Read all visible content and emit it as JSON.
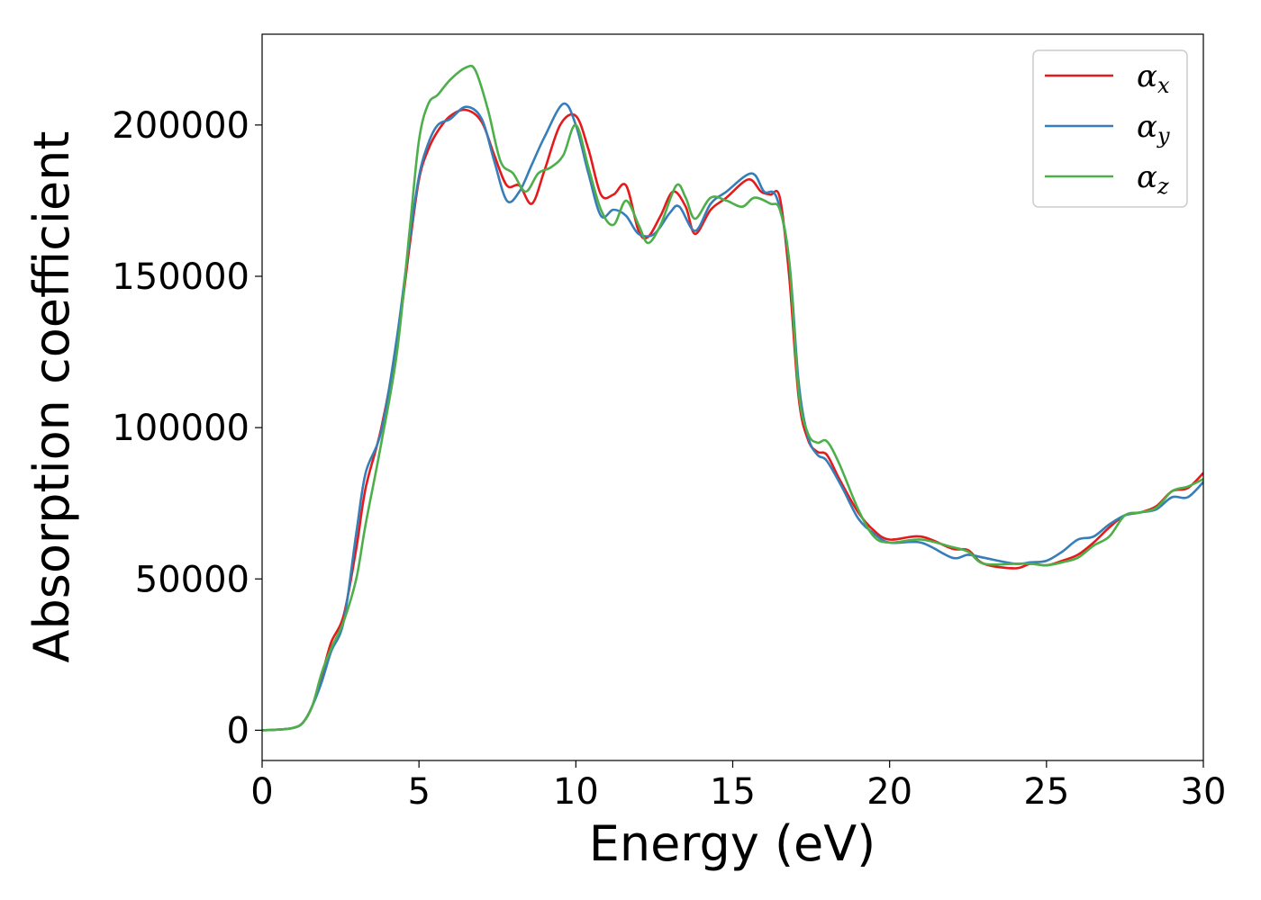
{
  "chart_data": {
    "type": "line",
    "xlabel": "Energy (eV)",
    "ylabel": "Absorption coefficient",
    "xlim": [
      0,
      30
    ],
    "ylim": [
      -10000,
      230000
    ],
    "xticks": [
      0,
      5,
      10,
      15,
      20,
      25,
      30
    ],
    "yticks": [
      0,
      50000,
      100000,
      150000,
      200000
    ],
    "grid": false,
    "legend_position": "top-right",
    "series": [
      {
        "name": "αx",
        "legend_base": "α",
        "legend_sub": "x",
        "color": "#e41a1c",
        "points": [
          [
            0,
            0
          ],
          [
            0.5,
            200
          ],
          [
            1,
            800
          ],
          [
            1.3,
            2500
          ],
          [
            1.6,
            8000
          ],
          [
            1.9,
            18000
          ],
          [
            2.2,
            29000
          ],
          [
            2.6,
            38000
          ],
          [
            3,
            60000
          ],
          [
            3.3,
            80000
          ],
          [
            3.8,
            100000
          ],
          [
            4.3,
            128000
          ],
          [
            4.7,
            160000
          ],
          [
            5,
            182000
          ],
          [
            5.3,
            192000
          ],
          [
            5.6,
            198000
          ],
          [
            6,
            203000
          ],
          [
            6.5,
            205000
          ],
          [
            7,
            201000
          ],
          [
            7.4,
            190000
          ],
          [
            7.8,
            180000
          ],
          [
            8.2,
            180000
          ],
          [
            8.6,
            174000
          ],
          [
            9,
            185000
          ],
          [
            9.5,
            200000
          ],
          [
            10,
            203000
          ],
          [
            10.4,
            192000
          ],
          [
            10.8,
            177000
          ],
          [
            11.2,
            177000
          ],
          [
            11.6,
            180000
          ],
          [
            12,
            165000
          ],
          [
            12.3,
            163000
          ],
          [
            12.7,
            170000
          ],
          [
            13.1,
            178000
          ],
          [
            13.5,
            173000
          ],
          [
            13.8,
            164000
          ],
          [
            14.3,
            172000
          ],
          [
            14.8,
            176000
          ],
          [
            15.5,
            182000
          ],
          [
            15.9,
            178000
          ],
          [
            16.2,
            177000
          ],
          [
            16.5,
            176000
          ],
          [
            16.8,
            150000
          ],
          [
            17.1,
            110000
          ],
          [
            17.4,
            96000
          ],
          [
            17.7,
            92000
          ],
          [
            18,
            91000
          ],
          [
            18.4,
            83000
          ],
          [
            19,
            72000
          ],
          [
            19.5,
            66000
          ],
          [
            20,
            63000
          ],
          [
            21,
            64000
          ],
          [
            22,
            60000
          ],
          [
            22.5,
            59500
          ],
          [
            23,
            55000
          ],
          [
            24,
            53500
          ],
          [
            24.5,
            55000
          ],
          [
            25,
            54500
          ],
          [
            25.5,
            56000
          ],
          [
            26,
            58000
          ],
          [
            26.5,
            62000
          ],
          [
            27,
            67000
          ],
          [
            27.5,
            71000
          ],
          [
            28,
            72000
          ],
          [
            28.5,
            74000
          ],
          [
            29,
            79000
          ],
          [
            29.5,
            80000
          ],
          [
            30,
            85000
          ]
        ]
      },
      {
        "name": "αy",
        "legend_base": "α",
        "legend_sub": "y",
        "color": "#377eb8",
        "points": [
          [
            0,
            0
          ],
          [
            0.5,
            200
          ],
          [
            1,
            800
          ],
          [
            1.3,
            2500
          ],
          [
            1.6,
            8000
          ],
          [
            1.9,
            16000
          ],
          [
            2.2,
            26000
          ],
          [
            2.6,
            36000
          ],
          [
            3,
            65000
          ],
          [
            3.3,
            85000
          ],
          [
            3.8,
            99000
          ],
          [
            4.3,
            130000
          ],
          [
            4.7,
            162000
          ],
          [
            5,
            183000
          ],
          [
            5.3,
            194000
          ],
          [
            5.6,
            200000
          ],
          [
            6,
            202000
          ],
          [
            6.5,
            206000
          ],
          [
            7,
            202000
          ],
          [
            7.4,
            188000
          ],
          [
            7.8,
            175000
          ],
          [
            8.2,
            178000
          ],
          [
            8.6,
            187000
          ],
          [
            9,
            196000
          ],
          [
            9.6,
            207000
          ],
          [
            10,
            200000
          ],
          [
            10.4,
            184000
          ],
          [
            10.8,
            170000
          ],
          [
            11.2,
            172000
          ],
          [
            11.6,
            170000
          ],
          [
            12,
            164000
          ],
          [
            12.5,
            164000
          ],
          [
            13,
            171000
          ],
          [
            13.3,
            173000
          ],
          [
            13.8,
            165000
          ],
          [
            14.3,
            174000
          ],
          [
            14.8,
            178000
          ],
          [
            15.6,
            184000
          ],
          [
            16,
            178000
          ],
          [
            16.4,
            176000
          ],
          [
            16.8,
            155000
          ],
          [
            17.1,
            115000
          ],
          [
            17.4,
            97000
          ],
          [
            17.7,
            91000
          ],
          [
            18,
            89000
          ],
          [
            18.5,
            80000
          ],
          [
            19,
            70000
          ],
          [
            19.5,
            65000
          ],
          [
            20,
            62000
          ],
          [
            21,
            62000
          ],
          [
            22,
            57000
          ],
          [
            22.5,
            58000
          ],
          [
            23,
            57000
          ],
          [
            24,
            55000
          ],
          [
            24.5,
            55500
          ],
          [
            25,
            56000
          ],
          [
            25.5,
            59000
          ],
          [
            26,
            63000
          ],
          [
            26.5,
            64000
          ],
          [
            27,
            68000
          ],
          [
            27.5,
            71000
          ],
          [
            28,
            72000
          ],
          [
            28.5,
            73000
          ],
          [
            29,
            77000
          ],
          [
            29.5,
            77000
          ],
          [
            30,
            82000
          ]
        ]
      },
      {
        "name": "αz",
        "legend_base": "α",
        "legend_sub": "z",
        "color": "#4daf4a",
        "points": [
          [
            0,
            0
          ],
          [
            0.5,
            200
          ],
          [
            1,
            800
          ],
          [
            1.3,
            2500
          ],
          [
            1.6,
            8000
          ],
          [
            1.9,
            19000
          ],
          [
            2.2,
            27000
          ],
          [
            2.6,
            36000
          ],
          [
            3,
            50000
          ],
          [
            3.3,
            68000
          ],
          [
            3.8,
            95000
          ],
          [
            4.3,
            125000
          ],
          [
            4.7,
            165000
          ],
          [
            5,
            195000
          ],
          [
            5.3,
            207000
          ],
          [
            5.6,
            210000
          ],
          [
            6,
            215000
          ],
          [
            6.5,
            219000
          ],
          [
            6.8,
            218000
          ],
          [
            7.2,
            205000
          ],
          [
            7.6,
            188000
          ],
          [
            8,
            184000
          ],
          [
            8.4,
            178000
          ],
          [
            8.8,
            184000
          ],
          [
            9.2,
            186000
          ],
          [
            9.6,
            190000
          ],
          [
            10,
            200000
          ],
          [
            10.4,
            186000
          ],
          [
            10.8,
            172000
          ],
          [
            11.2,
            167000
          ],
          [
            11.6,
            175000
          ],
          [
            12,
            167000
          ],
          [
            12.3,
            161000
          ],
          [
            12.7,
            167000
          ],
          [
            13.2,
            180000
          ],
          [
            13.5,
            176000
          ],
          [
            13.8,
            169000
          ],
          [
            14.3,
            176000
          ],
          [
            14.8,
            175000
          ],
          [
            15.3,
            173000
          ],
          [
            15.7,
            176000
          ],
          [
            16.2,
            174000
          ],
          [
            16.5,
            172000
          ],
          [
            16.8,
            155000
          ],
          [
            17.1,
            112000
          ],
          [
            17.4,
            98000
          ],
          [
            17.7,
            95000
          ],
          [
            18,
            95500
          ],
          [
            18.4,
            88000
          ],
          [
            19,
            73000
          ],
          [
            19.5,
            64000
          ],
          [
            20,
            62000
          ],
          [
            21,
            63000
          ],
          [
            22,
            60500
          ],
          [
            22.5,
            59000
          ],
          [
            23,
            55000
          ],
          [
            24,
            55000
          ],
          [
            24.5,
            55000
          ],
          [
            25,
            54500
          ],
          [
            25.5,
            55500
          ],
          [
            26,
            57000
          ],
          [
            26.5,
            61000
          ],
          [
            27,
            64000
          ],
          [
            27.5,
            71000
          ],
          [
            28,
            72000
          ],
          [
            28.5,
            73500
          ],
          [
            29,
            79000
          ],
          [
            29.5,
            80500
          ],
          [
            30,
            83000
          ]
        ]
      }
    ]
  }
}
